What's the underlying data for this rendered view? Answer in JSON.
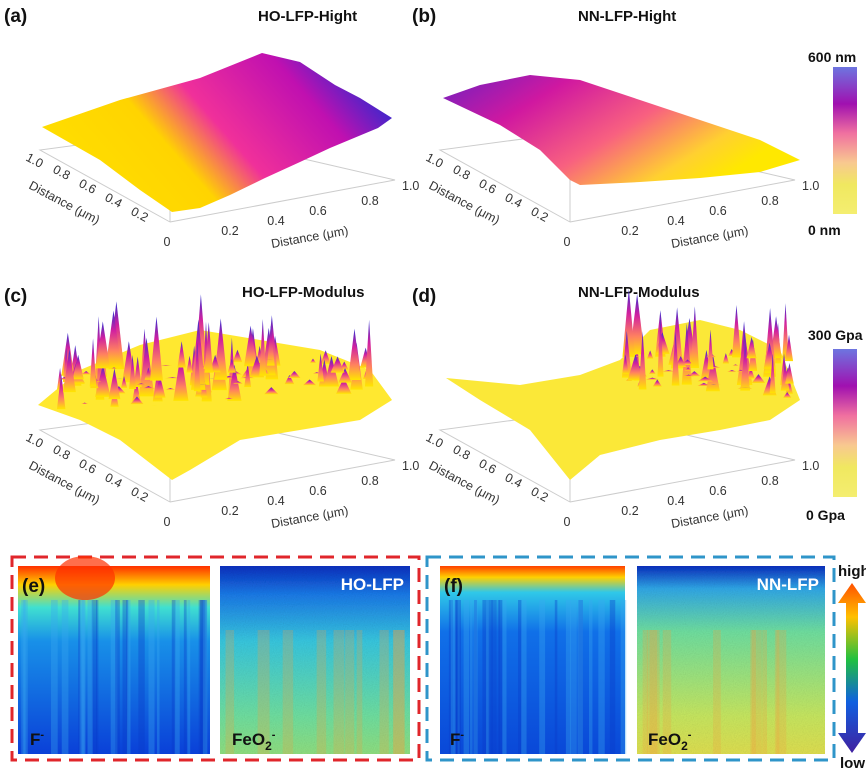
{
  "chart_data": [
    {
      "type": "surface",
      "panel": "(a)",
      "title": "HO-LFP-Hight",
      "xlabel": "Distance (μm)",
      "ylabel": "Distance (μm)",
      "x_ticks": [
        "0",
        "0.2",
        "0.4",
        "0.6",
        "0.8",
        "1.0"
      ],
      "y_ticks": [
        "1.0",
        "0.8",
        "0.6",
        "0.4",
        "0.2"
      ],
      "colorbar": {
        "max": "600 nm",
        "min": "0 nm"
      }
    },
    {
      "type": "surface",
      "panel": "(b)",
      "title": "NN-LFP-Hight",
      "xlabel": "Distance (μm)",
      "ylabel": "Distance (μm)",
      "x_ticks": [
        "0",
        "0.2",
        "0.4",
        "0.6",
        "0.8",
        "1.0"
      ],
      "y_ticks": [
        "1.0",
        "0.8",
        "0.6",
        "0.4",
        "0.2"
      ],
      "colorbar": {
        "max": "600 nm",
        "min": "0 nm"
      }
    },
    {
      "type": "surface",
      "panel": "(c)",
      "title": "HO-LFP-Modulus",
      "xlabel": "Distance (μm)",
      "ylabel": "Distance (μm)",
      "x_ticks": [
        "0",
        "0.2",
        "0.4",
        "0.6",
        "0.8",
        "1.0"
      ],
      "y_ticks": [
        "1.0",
        "0.8",
        "0.6",
        "0.4",
        "0.2"
      ],
      "colorbar": {
        "max": "300 Gpa",
        "min": "0 Gpa"
      }
    },
    {
      "type": "surface",
      "panel": "(d)",
      "title": "NN-LFP-Modulus",
      "xlabel": "Distance (μm)",
      "ylabel": "Distance (μm)",
      "x_ticks": [
        "0",
        "0.2",
        "0.4",
        "0.6",
        "0.8",
        "1.0"
      ],
      "y_ticks": [
        "1.0",
        "0.8",
        "0.6",
        "0.4",
        "0.2"
      ],
      "colorbar": {
        "max": "300 Gpa",
        "min": "0 Gpa"
      }
    },
    {
      "type": "heatmap",
      "panel": "(e)",
      "sample": "HO-LFP",
      "maps": [
        "F-",
        "FeO2-"
      ]
    },
    {
      "type": "heatmap",
      "panel": "(f)",
      "sample": "NN-LFP",
      "maps": [
        "F-",
        "FeO2-"
      ]
    }
  ],
  "labels": {
    "a": "(a)",
    "b": "(b)",
    "c": "(c)",
    "d": "(d)",
    "e": "(e)",
    "f": "(f)",
    "title_a": "HO-LFP-Hight",
    "title_b": "NN-LFP-Hight",
    "title_c": "HO-LFP-Modulus",
    "title_d": "NN-LFP-Modulus",
    "cb1_max": "600 nm",
    "cb1_min": "0 nm",
    "cb2_max": "300 Gpa",
    "cb2_min": "0 Gpa",
    "ho": "HO-LFP",
    "nn": "NN-LFP",
    "f_ion": "F",
    "fe_ion": "FeO",
    "sub2": "2",
    "minus": "-",
    "high": "high",
    "low": "low"
  },
  "colors": {
    "red_box": "#e0262b",
    "blue_box": "#2f95c9",
    "surface_low": "#ffe600",
    "surface_mid": "#e8109a",
    "surface_high": "#3030d0"
  }
}
